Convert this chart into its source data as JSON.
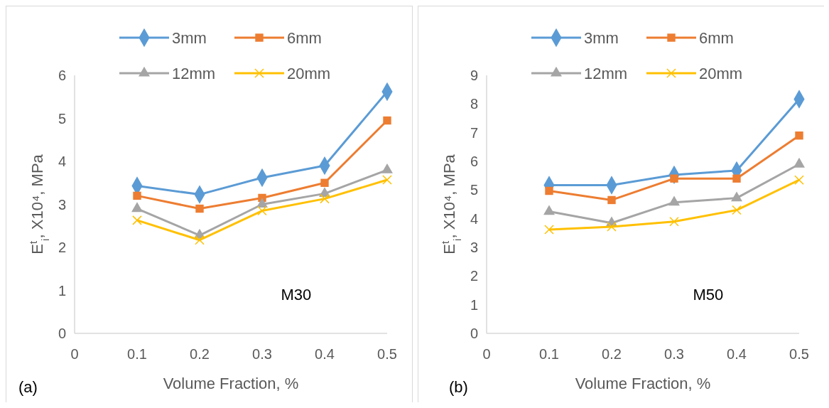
{
  "chart_data": [
    {
      "type": "line",
      "xlabel": "Volume Fraction, %",
      "ylabel": "E$^{t}$$_{i}$, X10⁴, MPa",
      "annotations": [
        "M30",
        "(a)"
      ],
      "x": [
        0.1,
        0.2,
        0.3,
        0.4,
        0.5
      ],
      "xlim": [
        0,
        0.5
      ],
      "xticks": [
        0,
        0.1,
        0.2,
        0.3,
        0.4,
        0.5
      ],
      "ylim": [
        0,
        6
      ],
      "yticks": [
        0,
        1,
        2,
        3,
        4,
        5,
        6
      ],
      "grid": false,
      "legend": "top",
      "line_style": "solid",
      "series": [
        {
          "name": "3mm",
          "color": "#5b9bd5",
          "marker": "diamond",
          "values": [
            3.43,
            3.23,
            3.62,
            3.9,
            5.62
          ]
        },
        {
          "name": "6mm",
          "color": "#ed7d31",
          "marker": "square",
          "values": [
            3.2,
            2.9,
            3.15,
            3.5,
            4.95
          ]
        },
        {
          "name": "12mm",
          "color": "#a5a5a5",
          "marker": "triangle",
          "values": [
            2.9,
            2.28,
            3.0,
            3.25,
            3.8
          ]
        },
        {
          "name": "20mm",
          "color": "#ffc000",
          "marker": "cross",
          "values": [
            2.63,
            2.17,
            2.85,
            3.13,
            3.57
          ]
        }
      ]
    },
    {
      "type": "line",
      "xlabel": "Volume Fraction, %",
      "ylabel": "E$^{t}$$_{i}$, X10⁴, MPa",
      "annotations": [
        "M50",
        "(b)"
      ],
      "x": [
        0.1,
        0.2,
        0.3,
        0.4,
        0.5
      ],
      "xlim": [
        0,
        0.5
      ],
      "xticks": [
        0,
        0.1,
        0.2,
        0.3,
        0.4,
        0.5
      ],
      "ylim": [
        0,
        9
      ],
      "yticks": [
        0,
        1,
        2,
        3,
        4,
        5,
        6,
        7,
        8,
        9
      ],
      "grid": false,
      "legend": "top",
      "line_style": "solid",
      "series": [
        {
          "name": "3mm",
          "color": "#5b9bd5",
          "marker": "diamond",
          "values": [
            5.17,
            5.17,
            5.53,
            5.68,
            8.17
          ]
        },
        {
          "name": "6mm",
          "color": "#ed7d31",
          "marker": "square",
          "values": [
            4.97,
            4.65,
            5.4,
            5.4,
            6.9
          ]
        },
        {
          "name": "12mm",
          "color": "#a5a5a5",
          "marker": "triangle",
          "values": [
            4.25,
            3.85,
            4.57,
            4.72,
            5.9
          ]
        },
        {
          "name": "20mm",
          "color": "#ffc000",
          "marker": "cross",
          "values": [
            3.62,
            3.72,
            3.9,
            4.3,
            5.35
          ]
        }
      ]
    }
  ]
}
